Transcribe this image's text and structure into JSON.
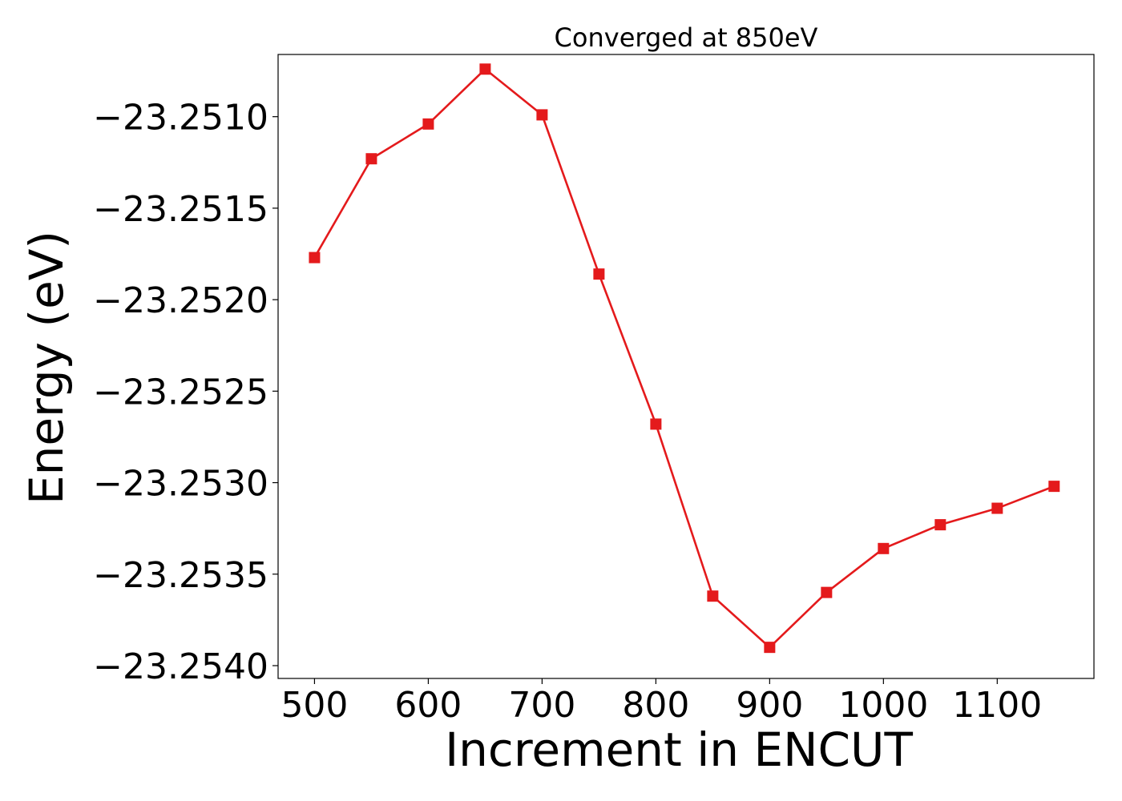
{
  "chart_data": {
    "type": "line",
    "title": "Converged at 850eV",
    "xlabel": "Increment in ENCUT",
    "ylabel": "Energy (eV)",
    "x": [
      500,
      550,
      600,
      650,
      700,
      750,
      800,
      850,
      900,
      950,
      1000,
      1050,
      1100,
      1150
    ],
    "series": [
      {
        "values": [
          -23.25177,
          -23.25123,
          -23.25104,
          -23.25074,
          -23.25099,
          -23.25186,
          -23.25268,
          -23.25362,
          -23.2539,
          -23.2536,
          -23.25336,
          -23.25323,
          -23.25314,
          -23.25302
        ],
        "color": "#e41a1c",
        "marker": "square"
      }
    ],
    "xlim": [
      468,
      1185
    ],
    "ylim": [
      -23.25407,
      -23.25066
    ],
    "xticks": [
      500,
      600,
      700,
      800,
      900,
      1000,
      1100
    ],
    "xtick_labels": [
      "500",
      "600",
      "700",
      "800",
      "900",
      "1000",
      "1100"
    ],
    "yticks": [
      -23.251,
      -23.2515,
      -23.252,
      -23.2525,
      -23.253,
      -23.2535,
      -23.254
    ],
    "ytick_labels": [
      "−23.2510",
      "−23.2515",
      "−23.2520",
      "−23.2525",
      "−23.2530",
      "−23.2535",
      "−23.2540"
    ],
    "grid": false,
    "legend": false
  }
}
